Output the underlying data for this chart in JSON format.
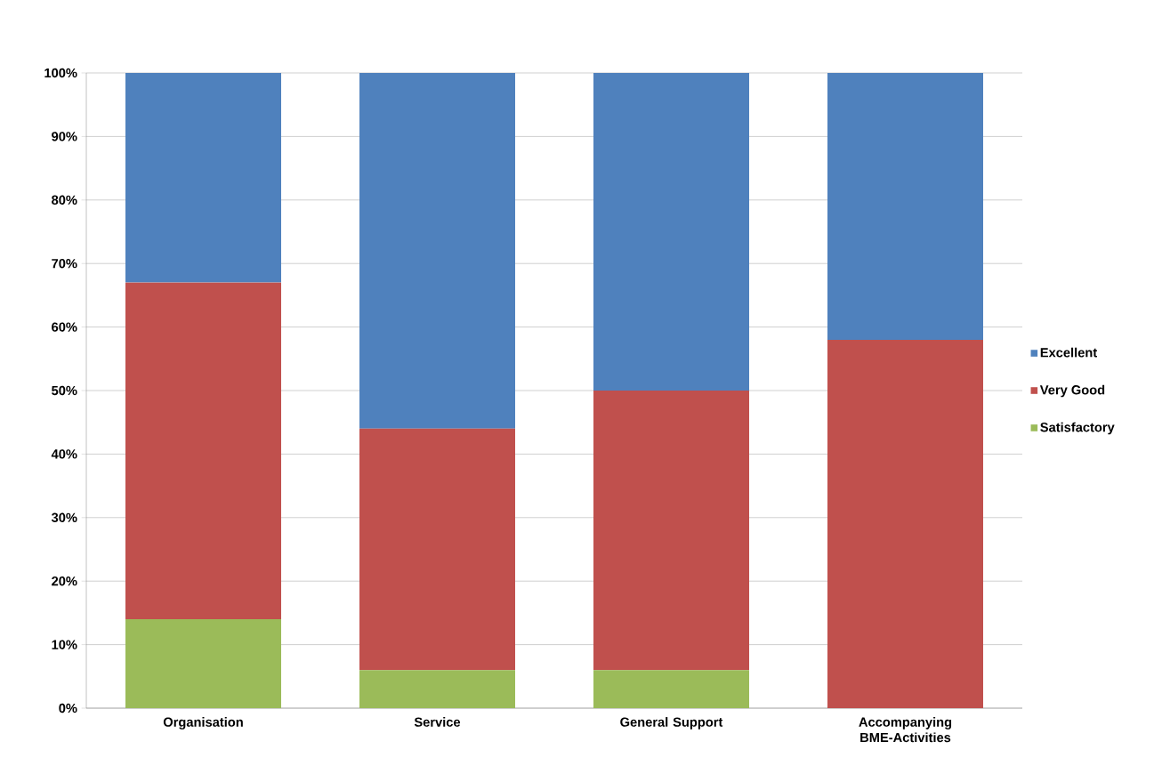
{
  "chart_data": {
    "type": "bar",
    "stacked": true,
    "categories": [
      "Organisation",
      "Service",
      "General Support",
      "Accompanying BME-Activities"
    ],
    "series": [
      {
        "name": "Satisfactory",
        "color": "#9bbb59",
        "values": [
          14,
          6,
          6,
          0
        ]
      },
      {
        "name": "Very Good",
        "color": "#c0504d",
        "values": [
          53,
          38,
          44,
          58
        ]
      },
      {
        "name": "Excellent",
        "color": "#4f81bd",
        "values": [
          33,
          56,
          50,
          42
        ]
      }
    ],
    "ylim": [
      0,
      100
    ],
    "yticks": [
      {
        "value": 0,
        "label": "0%"
      },
      {
        "value": 10,
        "label": "10%"
      },
      {
        "value": 20,
        "label": "20%"
      },
      {
        "value": 30,
        "label": "30%"
      },
      {
        "value": 40,
        "label": "40%"
      },
      {
        "value": 50,
        "label": "50%"
      },
      {
        "value": 60,
        "label": "60%"
      },
      {
        "value": 70,
        "label": "70%"
      },
      {
        "value": 80,
        "label": "80%"
      },
      {
        "value": 90,
        "label": "90%"
      },
      {
        "value": 100,
        "label": "100%"
      }
    ],
    "grid": "y",
    "legend": "right"
  }
}
